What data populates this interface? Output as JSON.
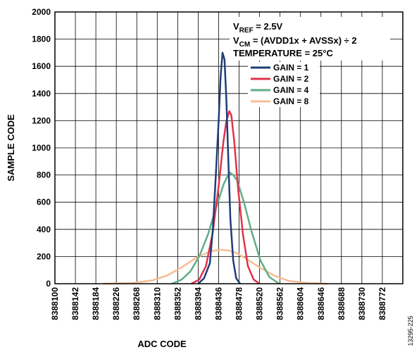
{
  "chart_data": {
    "type": "line",
    "xlabel": "ADC CODE",
    "ylabel": "SAMPLE CODE",
    "x_tick_labels": [
      "8388100",
      "8388142",
      "8388184",
      "8388226",
      "8388268",
      "8388310",
      "8388352",
      "8388394",
      "8388436",
      "8388478",
      "8388520",
      "8388562",
      "8388604",
      "8388646",
      "8388688",
      "8388730",
      "8388772"
    ],
    "y_ticks": [
      0,
      200,
      400,
      600,
      800,
      1000,
      1200,
      1400,
      1600,
      1800,
      2000
    ],
    "xlim": [
      8388100,
      8388814
    ],
    "ylim": [
      0,
      2000
    ],
    "grid": true,
    "annotations": {
      "vref_prefix": "V",
      "vref_sub": "REF",
      "vref_rest": " = 2.5V",
      "vcm_prefix": "V",
      "vcm_sub": "CM",
      "vcm_rest": " = (AVDD1x + AVSSx) ÷ 2",
      "temperature": "TEMPERATURE = 25°C"
    },
    "legend_position": "top-right",
    "series": [
      {
        "name": "GAIN = 1",
        "color": "#1f3d7a",
        "x": [
          8388394,
          8388406,
          8388418,
          8388424,
          8388430,
          8388436,
          8388440,
          8388444,
          8388448,
          8388452,
          8388456,
          8388460,
          8388466,
          8388472,
          8388480
        ],
        "y": [
          0,
          40,
          150,
          400,
          780,
          1200,
          1520,
          1700,
          1650,
          1350,
          900,
          480,
          170,
          40,
          0
        ]
      },
      {
        "name": "GAIN = 2",
        "color": "#e0324b",
        "x": [
          8388380,
          8388396,
          8388410,
          8388424,
          8388436,
          8388446,
          8388452,
          8388458,
          8388462,
          8388468,
          8388476,
          8388486,
          8388496,
          8388508,
          8388520
        ],
        "y": [
          0,
          30,
          130,
          380,
          720,
          1050,
          1200,
          1270,
          1240,
          1050,
          700,
          360,
          130,
          30,
          0
        ]
      },
      {
        "name": "GAIN = 4",
        "color": "#5fae86",
        "x": [
          8388340,
          8388360,
          8388378,
          8388396,
          8388414,
          8388430,
          8388446,
          8388458,
          8388466,
          8388474,
          8388488,
          8388504,
          8388522,
          8388540,
          8388560
        ],
        "y": [
          0,
          30,
          90,
          200,
          360,
          550,
          730,
          820,
          800,
          760,
          600,
          380,
          170,
          50,
          0
        ]
      },
      {
        "name": "GAIN = 8",
        "color": "#f6bd94",
        "x": [
          8388200,
          8388260,
          8388300,
          8388330,
          8388360,
          8388390,
          8388420,
          8388440,
          8388456,
          8388470,
          8388490,
          8388520,
          8388550,
          8388580,
          8388620,
          8388660
        ],
        "y": [
          0,
          5,
          25,
          60,
          120,
          190,
          240,
          250,
          245,
          230,
          190,
          120,
          60,
          20,
          5,
          0
        ]
      }
    ]
  },
  "figure_id": "13295-225"
}
